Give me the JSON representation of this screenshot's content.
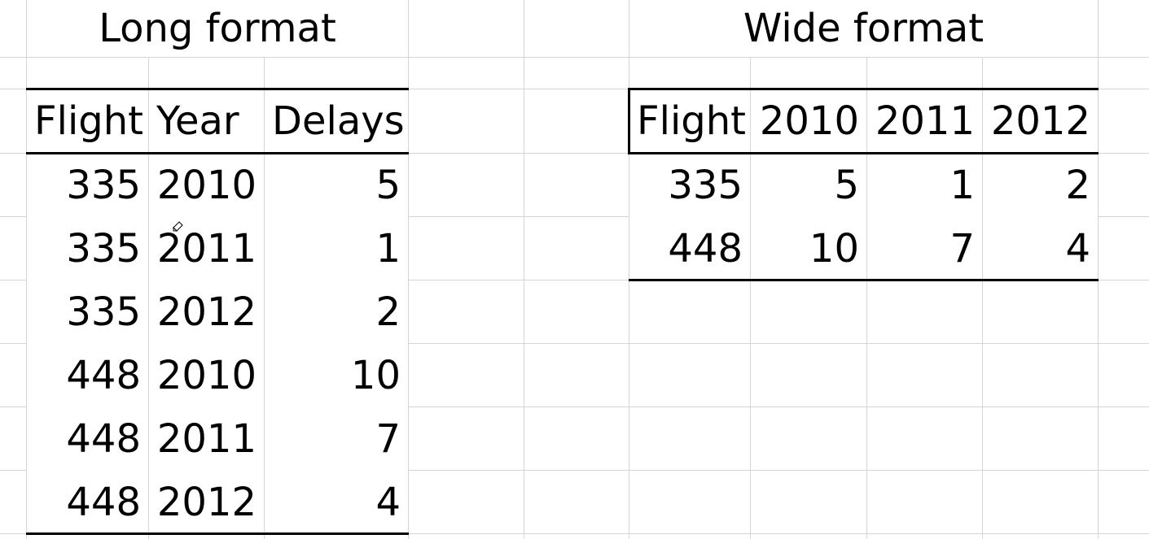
{
  "long_table": {
    "title": "Long format",
    "headers": [
      "Flight",
      "Year",
      "Delays"
    ],
    "rows": [
      [
        "335",
        "2010",
        "5"
      ],
      [
        "335",
        "2011",
        "1"
      ],
      [
        "335",
        "2012",
        "2"
      ],
      [
        "448",
        "2010",
        "10"
      ],
      [
        "448",
        "2011",
        "7"
      ],
      [
        "448",
        "2012",
        "4"
      ]
    ]
  },
  "wide_table": {
    "title": "Wide format",
    "headers": [
      "Flight",
      "2010",
      "2011",
      "2012"
    ],
    "rows": [
      [
        "335",
        "5",
        "1",
        "2"
      ],
      [
        "448",
        "10",
        "7",
        "4"
      ]
    ]
  },
  "colors": {
    "gridline": "#d4d4d4",
    "border": "#000000",
    "background": "#ffffff"
  }
}
